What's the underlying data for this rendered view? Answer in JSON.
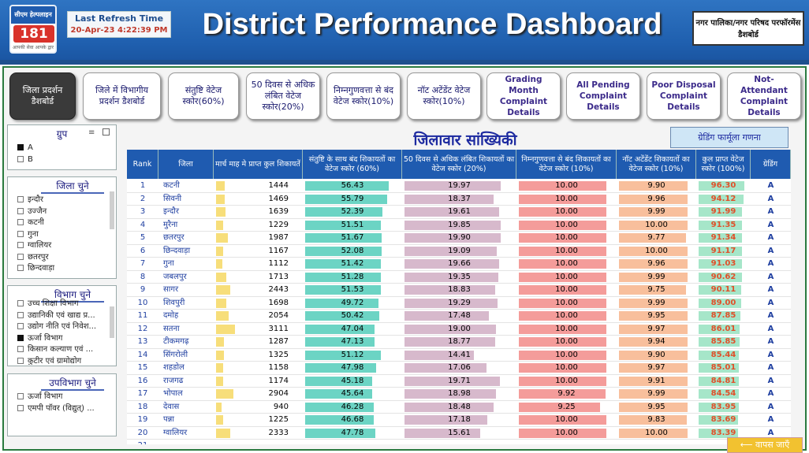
{
  "logo": {
    "top": "सीएम हेल्पलाइन",
    "num": "181",
    "tag": "आपकी सेवा आपके द्वार"
  },
  "refresh": {
    "label": "Last Refresh Time",
    "value": "20-Apr-23 4:22:39 PM"
  },
  "title": "District Performance Dashboard",
  "nagar_button": "नगर पालिका/नगर परिषद परफॉरमेंस डैशबोर्ड",
  "nav": [
    {
      "label": "जिला प्रदर्शन डैशबोर्ड",
      "active": true
    },
    {
      "label": "जिले में विभागीय प्रदर्शन डैशबोर्ड"
    },
    {
      "label": "संतुष्टि वेटेज स्कोर(60%)"
    },
    {
      "label": "50 दिवस से अधिक लंबित वेटेज स्कोर(20%)"
    },
    {
      "label": "निम्नगुणवत्ता से बंद वेटेज स्कोर(10%)"
    },
    {
      "label": "नॉट अटेंडेंट वेटेज स्कोर(10%)"
    },
    {
      "label": "Grading Month Complaint Details",
      "en": true
    },
    {
      "label": "All Pending Complaint Details",
      "en": true
    },
    {
      "label": "Poor Disposal Complaint Details",
      "en": true
    },
    {
      "label": "Not-Attendant Complaint Details",
      "en": true
    }
  ],
  "group_slicer": {
    "title": "ग्रुप",
    "items": [
      {
        "label": "A",
        "checked": true
      },
      {
        "label": "B",
        "checked": false
      }
    ]
  },
  "district_slicer": {
    "title": "जिला चुने",
    "items": [
      "इन्दौर",
      "उज्जैन",
      "कटनी",
      "गुना",
      "ग्वालियर",
      "छतरपुर",
      "छिन्दवाड़ा"
    ]
  },
  "dept_slicer": {
    "title": "विभाग चुने",
    "items": [
      {
        "label": "उच्च शिक्षा विभाग",
        "checked": false
      },
      {
        "label": "उद्यानिकी एवं खाद्य प्र...",
        "checked": false
      },
      {
        "label": "उद्योग नीति एवं निवेश...",
        "checked": false
      },
      {
        "label": "ऊर्जा विभाग",
        "checked": true
      },
      {
        "label": "किसान कल्याण एवं ...",
        "checked": false
      },
      {
        "label": "कुटीर एवं ग्रामोद्योग",
        "checked": false
      }
    ]
  },
  "subdept_slicer": {
    "title": "उपविभाग चुने",
    "items": [
      "ऊर्जा विभाग",
      "एमपी पॉवर (विद्युत्) ..."
    ]
  },
  "table_title": "जिलावार सांख्यिकी",
  "grading_button": "ग्रेडिंग फार्मूला गणना",
  "back_button": "⟵ वापस जाएँ",
  "colors": {
    "header": "#1f5bb0",
    "complaints": "#f7de7a",
    "satisfaction": "#6cd4c4",
    "pending": "#d7b9cc",
    "poor": "#f49c9a",
    "notattend": "#f8bf9c",
    "total": "#a6e6c9"
  },
  "columns": [
    "Rank",
    "जिला",
    "मार्च माह मे प्राप्त कुल शिकायतें",
    "संतुष्टि के साथ बंद शिकायतों का वेटेज स्कोर (60%)",
    "50 दिवस से अधिक लंबित शिकायतों का वेटेज स्कोर (20%)",
    "निम्नगुणवत्ता से बंद शिकायतों का वेटेज स्कोर (10%)",
    "नॉट अटेंडेंट शिकायतों का वेटेज स्कोर (10%)",
    "कुल प्राप्त वेटेज स्कोर (100%)",
    "ग्रेडिंग"
  ],
  "rows": [
    {
      "rank": "1",
      "district": "कटनी",
      "complaints": "1444",
      "satisfaction": "56.43",
      "pending": "19.97",
      "poor": "10.00",
      "notattend": "9.90",
      "total": "96.30",
      "grade": "A"
    },
    {
      "rank": "2",
      "district": "सिवनी",
      "complaints": "1469",
      "satisfaction": "55.79",
      "pending": "18.37",
      "poor": "10.00",
      "notattend": "9.96",
      "total": "94.12",
      "grade": "A"
    },
    {
      "rank": "3",
      "district": "इन्दौर",
      "complaints": "1639",
      "satisfaction": "52.39",
      "pending": "19.61",
      "poor": "10.00",
      "notattend": "9.99",
      "total": "91.99",
      "grade": "A"
    },
    {
      "rank": "4",
      "district": "मुरैना",
      "complaints": "1229",
      "satisfaction": "51.51",
      "pending": "19.85",
      "poor": "10.00",
      "notattend": "10.00",
      "total": "91.35",
      "grade": "A"
    },
    {
      "rank": "5",
      "district": "छतरपुर",
      "complaints": "1987",
      "satisfaction": "51.67",
      "pending": "19.90",
      "poor": "10.00",
      "notattend": "9.77",
      "total": "91.34",
      "grade": "A"
    },
    {
      "rank": "6",
      "district": "छिन्दवाड़ा",
      "complaints": "1167",
      "satisfaction": "52.08",
      "pending": "19.09",
      "poor": "10.00",
      "notattend": "10.00",
      "total": "91.17",
      "grade": "A"
    },
    {
      "rank": "7",
      "district": "गुना",
      "complaints": "1112",
      "satisfaction": "51.42",
      "pending": "19.66",
      "poor": "10.00",
      "notattend": "9.96",
      "total": "91.03",
      "grade": "A"
    },
    {
      "rank": "8",
      "district": "जबलपुर",
      "complaints": "1713",
      "satisfaction": "51.28",
      "pending": "19.35",
      "poor": "10.00",
      "notattend": "9.99",
      "total": "90.62",
      "grade": "A"
    },
    {
      "rank": "9",
      "district": "सागर",
      "complaints": "2443",
      "satisfaction": "51.53",
      "pending": "18.83",
      "poor": "10.00",
      "notattend": "9.75",
      "total": "90.11",
      "grade": "A"
    },
    {
      "rank": "10",
      "district": "शिवपुरी",
      "complaints": "1698",
      "satisfaction": "49.72",
      "pending": "19.29",
      "poor": "10.00",
      "notattend": "9.99",
      "total": "89.00",
      "grade": "A"
    },
    {
      "rank": "11",
      "district": "दमोह",
      "complaints": "2054",
      "satisfaction": "50.42",
      "pending": "17.48",
      "poor": "10.00",
      "notattend": "9.95",
      "total": "87.85",
      "grade": "A"
    },
    {
      "rank": "12",
      "district": "सतना",
      "complaints": "3111",
      "satisfaction": "47.04",
      "pending": "19.00",
      "poor": "10.00",
      "notattend": "9.97",
      "total": "86.01",
      "grade": "A"
    },
    {
      "rank": "13",
      "district": "टीकमगढ़",
      "complaints": "1287",
      "satisfaction": "47.13",
      "pending": "18.77",
      "poor": "10.00",
      "notattend": "9.94",
      "total": "85.85",
      "grade": "A"
    },
    {
      "rank": "14",
      "district": "सिंगरोली",
      "complaints": "1325",
      "satisfaction": "51.12",
      "pending": "14.41",
      "poor": "10.00",
      "notattend": "9.90",
      "total": "85.44",
      "grade": "A"
    },
    {
      "rank": "15",
      "district": "शहडोल",
      "complaints": "1158",
      "satisfaction": "47.98",
      "pending": "17.06",
      "poor": "10.00",
      "notattend": "9.97",
      "total": "85.01",
      "grade": "A"
    },
    {
      "rank": "16",
      "district": "राजगढ",
      "complaints": "1174",
      "satisfaction": "45.18",
      "pending": "19.71",
      "poor": "10.00",
      "notattend": "9.91",
      "total": "84.81",
      "grade": "A"
    },
    {
      "rank": "17",
      "district": "भोपाल",
      "complaints": "2904",
      "satisfaction": "45.64",
      "pending": "18.98",
      "poor": "9.92",
      "notattend": "9.99",
      "total": "84.54",
      "grade": "A"
    },
    {
      "rank": "18",
      "district": "देवास",
      "complaints": "940",
      "satisfaction": "46.28",
      "pending": "18.48",
      "poor": "9.25",
      "notattend": "9.95",
      "total": "83.95",
      "grade": "A"
    },
    {
      "rank": "19",
      "district": "पन्ना",
      "complaints": "1225",
      "satisfaction": "46.68",
      "pending": "17.18",
      "poor": "10.00",
      "notattend": "9.83",
      "total": "83.69",
      "grade": "A"
    },
    {
      "rank": "20",
      "district": "ग्वालियर",
      "complaints": "2333",
      "satisfaction": "47.78",
      "pending": "15.61",
      "poor": "10.00",
      "notattend": "10.00",
      "total": "83.39",
      "grade": "A"
    },
    {
      "rank": "21",
      "district": "",
      "complaints": "",
      "satisfaction": "",
      "pending": "",
      "poor": "",
      "notattend": "",
      "total": "",
      "grade": ""
    }
  ]
}
